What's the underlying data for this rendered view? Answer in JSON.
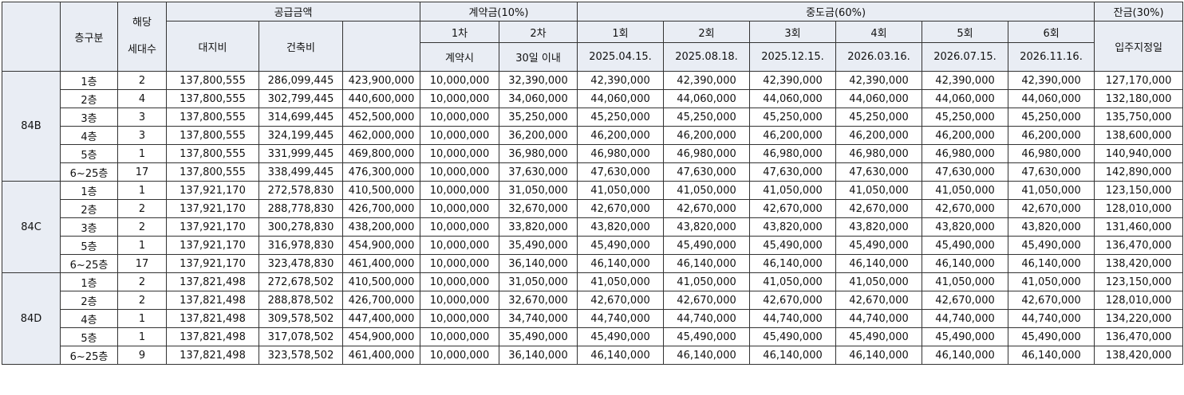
{
  "header": {
    "floor_label": "층구분",
    "units_label_top": "해당",
    "units_label_bottom": "세대수",
    "supply_label": "공급금액",
    "land_label": "대지비",
    "building_label": "건축비",
    "supply_total_label": "",
    "deposit_label": "계약금(10%)",
    "deposit_1": "1차",
    "deposit_2": "2차",
    "deposit_1_when": "계약시",
    "deposit_2_when": "30일 이내",
    "interim_label": "중도금(60%)",
    "interim": [
      {
        "label": "1회",
        "date": "2025.04.15."
      },
      {
        "label": "2회",
        "date": "2025.08.18."
      },
      {
        "label": "3회",
        "date": "2025.12.15."
      },
      {
        "label": "4회",
        "date": "2026.03.16."
      },
      {
        "label": "5회",
        "date": "2026.07.15."
      },
      {
        "label": "6회",
        "date": "2026.11.16."
      }
    ],
    "balance_label": "잔금(30%)",
    "balance_when": "입주지정일"
  },
  "groups": [
    {
      "type": "84B",
      "rows": [
        {
          "floor": "1층",
          "units": "2",
          "land": "137,800,555",
          "building": "286,099,445",
          "total": "423,900,000",
          "d1": "10,000,000",
          "d2": "32,390,000",
          "interim": "42,390,000",
          "balance": "127,170,000"
        },
        {
          "floor": "2층",
          "units": "4",
          "land": "137,800,555",
          "building": "302,799,445",
          "total": "440,600,000",
          "d1": "10,000,000",
          "d2": "34,060,000",
          "interim": "44,060,000",
          "balance": "132,180,000"
        },
        {
          "floor": "3층",
          "units": "3",
          "land": "137,800,555",
          "building": "314,699,445",
          "total": "452,500,000",
          "d1": "10,000,000",
          "d2": "35,250,000",
          "interim": "45,250,000",
          "balance": "135,750,000"
        },
        {
          "floor": "4층",
          "units": "3",
          "land": "137,800,555",
          "building": "324,199,445",
          "total": "462,000,000",
          "d1": "10,000,000",
          "d2": "36,200,000",
          "interim": "46,200,000",
          "balance": "138,600,000"
        },
        {
          "floor": "5층",
          "units": "1",
          "land": "137,800,555",
          "building": "331,999,445",
          "total": "469,800,000",
          "d1": "10,000,000",
          "d2": "36,980,000",
          "interim": "46,980,000",
          "balance": "140,940,000"
        },
        {
          "floor": "6~25층",
          "units": "17",
          "land": "137,800,555",
          "building": "338,499,445",
          "total": "476,300,000",
          "d1": "10,000,000",
          "d2": "37,630,000",
          "interim": "47,630,000",
          "balance": "142,890,000"
        }
      ]
    },
    {
      "type": "84C",
      "rows": [
        {
          "floor": "1층",
          "units": "1",
          "land": "137,921,170",
          "building": "272,578,830",
          "total": "410,500,000",
          "d1": "10,000,000",
          "d2": "31,050,000",
          "interim": "41,050,000",
          "balance": "123,150,000"
        },
        {
          "floor": "2층",
          "units": "2",
          "land": "137,921,170",
          "building": "288,778,830",
          "total": "426,700,000",
          "d1": "10,000,000",
          "d2": "32,670,000",
          "interim": "42,670,000",
          "balance": "128,010,000"
        },
        {
          "floor": "3층",
          "units": "2",
          "land": "137,921,170",
          "building": "300,278,830",
          "total": "438,200,000",
          "d1": "10,000,000",
          "d2": "33,820,000",
          "interim": "43,820,000",
          "balance": "131,460,000"
        },
        {
          "floor": "5층",
          "units": "1",
          "land": "137,921,170",
          "building": "316,978,830",
          "total": "454,900,000",
          "d1": "10,000,000",
          "d2": "35,490,000",
          "interim": "45,490,000",
          "balance": "136,470,000"
        },
        {
          "floor": "6~25층",
          "units": "17",
          "land": "137,921,170",
          "building": "323,478,830",
          "total": "461,400,000",
          "d1": "10,000,000",
          "d2": "36,140,000",
          "interim": "46,140,000",
          "balance": "138,420,000"
        }
      ]
    },
    {
      "type": "84D",
      "rows": [
        {
          "floor": "1층",
          "units": "2",
          "land": "137,821,498",
          "building": "272,678,502",
          "total": "410,500,000",
          "d1": "10,000,000",
          "d2": "31,050,000",
          "interim": "41,050,000",
          "balance": "123,150,000"
        },
        {
          "floor": "2층",
          "units": "2",
          "land": "137,821,498",
          "building": "288,878,502",
          "total": "426,700,000",
          "d1": "10,000,000",
          "d2": "32,670,000",
          "interim": "42,670,000",
          "balance": "128,010,000"
        },
        {
          "floor": "4층",
          "units": "1",
          "land": "137,821,498",
          "building": "309,578,502",
          "total": "447,400,000",
          "d1": "10,000,000",
          "d2": "34,740,000",
          "interim": "44,740,000",
          "balance": "134,220,000"
        },
        {
          "floor": "5층",
          "units": "1",
          "land": "137,821,498",
          "building": "317,078,502",
          "total": "454,900,000",
          "d1": "10,000,000",
          "d2": "35,490,000",
          "interim": "45,490,000",
          "balance": "136,470,000"
        },
        {
          "floor": "6~25층",
          "units": "9",
          "land": "137,821,498",
          "building": "323,578,502",
          "total": "461,400,000",
          "d1": "10,000,000",
          "d2": "36,140,000",
          "interim": "46,140,000",
          "balance": "138,420,000"
        }
      ]
    }
  ],
  "colors": {
    "header_bg": "#e9edf4",
    "border": "#333333"
  }
}
